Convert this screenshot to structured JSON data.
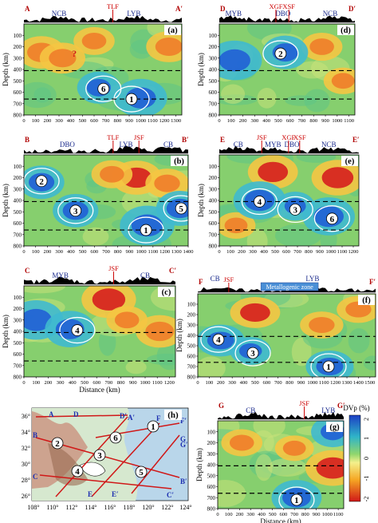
{
  "figure": {
    "depth_label": "Depth (km)",
    "distance_label": "Distance (km)",
    "colorbar_title": "DVp (%)",
    "colorbar_ticks": [
      "2",
      "1",
      "0",
      "-1",
      "-2"
    ],
    "colors": {
      "fast": "#1e5bd6",
      "slow": "#d61e1e",
      "neutral": "#7fd16a",
      "terrain": "#000000",
      "fault": "#cc0000",
      "contour": "#ffffff"
    }
  },
  "chart_data": [
    {
      "id": "a",
      "type": "heatmap",
      "panel_label": "(a)",
      "profile_start": "A",
      "profile_end": "A′",
      "xlim": [
        0,
        1350
      ],
      "ylim": [
        0,
        800
      ],
      "y_reversed": true,
      "xticks": [
        "0",
        "100",
        "200",
        "300",
        "400",
        "500",
        "600",
        "700",
        "800",
        "900",
        "1000",
        "1100",
        "1200",
        "1300"
      ],
      "yticks": [
        "100",
        "200",
        "300",
        "400",
        "500",
        "600",
        "700",
        "800"
      ],
      "discontinuities_km": [
        410,
        660
      ],
      "blocks": [
        {
          "name": "NCB",
          "x": 300
        },
        {
          "name": "LYB",
          "x": 940
        }
      ],
      "faults": [
        {
          "name": "TLF",
          "x": 760
        }
      ],
      "anomalies": [
        {
          "label": "?",
          "x": 430,
          "depth": 260
        },
        {
          "label": "6",
          "x": 680,
          "depth": 570
        },
        {
          "label": "1",
          "x": 920,
          "depth": 660
        }
      ],
      "fast_bodies": [
        {
          "x": 1000,
          "depth": 650,
          "dvp": 1.2
        },
        {
          "x": 640,
          "depth": 560,
          "dvp": 0.8
        }
      ],
      "slow_bodies": [
        {
          "x": 150,
          "depth": 250,
          "dvp": -1.0
        },
        {
          "x": 330,
          "depth": 300,
          "dvp": -0.9
        },
        {
          "x": 1240,
          "depth": 200,
          "dvp": -0.9
        },
        {
          "x": 600,
          "depth": 150,
          "dvp": -0.7
        }
      ]
    },
    {
      "id": "d",
      "type": "heatmap",
      "panel_label": "(d)",
      "profile_start": "D",
      "profile_end": "D′",
      "xlim": [
        0,
        1150
      ],
      "ylim": [
        0,
        800
      ],
      "y_reversed": true,
      "xticks": [
        "0",
        "100",
        "200",
        "300",
        "400",
        "500",
        "600",
        "700",
        "800",
        "900",
        "1000",
        "1100"
      ],
      "yticks": [
        "100",
        "200",
        "300",
        "400",
        "500",
        "600",
        "700",
        "800"
      ],
      "discontinuities_km": [
        410,
        660
      ],
      "blocks": [
        {
          "name": "MYB",
          "x": 120
        },
        {
          "name": "DBO",
          "x": 540
        },
        {
          "name": "NCB",
          "x": 940
        }
      ],
      "faults": [
        {
          "name": "XGF",
          "x": 480
        },
        {
          "name": "XSF",
          "x": 590
        }
      ],
      "anomalies": [
        {
          "label": "2",
          "x": 520,
          "depth": 260
        }
      ],
      "fast_bodies": [
        {
          "x": 130,
          "depth": 320,
          "dvp": 1.3
        },
        {
          "x": 560,
          "depth": 250,
          "dvp": 0.9
        }
      ],
      "slow_bodies": [
        {
          "x": 870,
          "depth": 200,
          "dvp": -0.7
        },
        {
          "x": 1050,
          "depth": 500,
          "dvp": -0.6
        }
      ]
    },
    {
      "id": "b",
      "type": "heatmap",
      "panel_label": "(b)",
      "profile_start": "B",
      "profile_end": "B′",
      "xlim": [
        0,
        1400
      ],
      "ylim": [
        0,
        800
      ],
      "y_reversed": true,
      "xticks": [
        "0",
        "100",
        "200",
        "300",
        "400",
        "500",
        "600",
        "700",
        "800",
        "900",
        "1000",
        "1100",
        "1200",
        "1300",
        "1400"
      ],
      "yticks": [
        "100",
        "200",
        "300",
        "400",
        "500",
        "600",
        "700",
        "800"
      ],
      "discontinuities_km": [
        410,
        660
      ],
      "blocks": [
        {
          "name": "DBO",
          "x": 370
        },
        {
          "name": "LYB",
          "x": 870
        },
        {
          "name": "CB",
          "x": 1230
        }
      ],
      "faults": [
        {
          "name": "TLF",
          "x": 760
        },
        {
          "name": "JSF",
          "x": 980
        }
      ],
      "anomalies": [
        {
          "label": "2",
          "x": 150,
          "depth": 230
        },
        {
          "label": "3",
          "x": 440,
          "depth": 490
        },
        {
          "label": "1",
          "x": 1040,
          "depth": 660
        },
        {
          "label": "5",
          "x": 1340,
          "depth": 470
        }
      ],
      "fast_bodies": [
        {
          "x": 150,
          "depth": 240,
          "dvp": 0.9
        },
        {
          "x": 440,
          "depth": 490,
          "dvp": 0.9
        },
        {
          "x": 1050,
          "depth": 620,
          "dvp": 1.3
        },
        {
          "x": 1330,
          "depth": 470,
          "dvp": 1.0
        }
      ],
      "slow_bodies": [
        {
          "x": 960,
          "depth": 200,
          "dvp": -1.1
        },
        {
          "x": 1220,
          "depth": 250,
          "dvp": -0.8
        },
        {
          "x": 750,
          "depth": 170,
          "dvp": -0.7
        }
      ]
    },
    {
      "id": "e",
      "type": "heatmap",
      "panel_label": "(e)",
      "profile_start": "E",
      "profile_end": "E′",
      "xlim": [
        0,
        1250
      ],
      "ylim": [
        0,
        800
      ],
      "y_reversed": true,
      "xticks": [
        "0",
        "100",
        "200",
        "300",
        "400",
        "500",
        "600",
        "700",
        "800",
        "900",
        "1000",
        "1100",
        "1200"
      ],
      "yticks": [
        "100",
        "200",
        "300",
        "400",
        "500",
        "600",
        "700",
        "800"
      ],
      "discontinuities_km": [
        410,
        660
      ],
      "blocks": [
        {
          "name": "CB",
          "x": 170
        },
        {
          "name": "MYB",
          "x": 480
        },
        {
          "name": "DBO",
          "x": 650
        },
        {
          "name": "NCB",
          "x": 980
        }
      ],
      "faults": [
        {
          "name": "JSF",
          "x": 380
        },
        {
          "name": "XGF",
          "x": 620
        },
        {
          "name": "XSF",
          "x": 720
        }
      ],
      "anomalies": [
        {
          "label": "4",
          "x": 360,
          "depth": 410
        },
        {
          "label": "3",
          "x": 680,
          "depth": 480
        },
        {
          "label": "6",
          "x": 1010,
          "depth": 560
        }
      ],
      "fast_bodies": [
        {
          "x": 360,
          "depth": 400,
          "dvp": 1.2
        },
        {
          "x": 980,
          "depth": 540,
          "dvp": 1.2
        },
        {
          "x": 680,
          "depth": 450,
          "dvp": 0.6
        }
      ],
      "slow_bodies": [
        {
          "x": 480,
          "depth": 150,
          "dvp": -1.1
        },
        {
          "x": 1060,
          "depth": 200,
          "dvp": -1.2
        },
        {
          "x": 150,
          "depth": 620,
          "dvp": -0.6
        }
      ]
    },
    {
      "id": "c",
      "type": "heatmap",
      "panel_label": "(c)",
      "profile_start": "C",
      "profile_end": "C′",
      "xlim": [
        0,
        1250
      ],
      "ylim": [
        0,
        800
      ],
      "y_reversed": true,
      "xticks": [
        "0",
        "100",
        "200",
        "300",
        "400",
        "500",
        "600",
        "700",
        "800",
        "900",
        "1000",
        "1100",
        "1200"
      ],
      "yticks": [
        "100",
        "200",
        "300",
        "400",
        "500",
        "600",
        "700",
        "800"
      ],
      "discontinuities_km": [
        410,
        660
      ],
      "blocks": [
        {
          "name": "MYB",
          "x": 300
        },
        {
          "name": "CB",
          "x": 1000
        }
      ],
      "faults": [
        {
          "name": "JSF",
          "x": 740
        }
      ],
      "anomalies": [
        {
          "label": "4",
          "x": 440,
          "depth": 390
        }
      ],
      "fast_bodies": [
        {
          "x": 100,
          "depth": 300,
          "dvp": 1.3
        },
        {
          "x": 380,
          "depth": 380,
          "dvp": 1.1
        }
      ],
      "slow_bodies": [
        {
          "x": 700,
          "depth": 120,
          "dvp": -1.3
        },
        {
          "x": 1120,
          "depth": 400,
          "dvp": -1.0
        },
        {
          "x": 850,
          "depth": 300,
          "dvp": -0.7
        }
      ]
    },
    {
      "id": "f",
      "type": "heatmap",
      "panel_label": "(f)",
      "profile_start": "F",
      "profile_end": "F′",
      "xlim": [
        0,
        1550
      ],
      "ylim": [
        0,
        800
      ],
      "y_reversed": true,
      "xticks": [
        "0",
        "100",
        "200",
        "300",
        "400",
        "500",
        "600",
        "700",
        "800",
        "900",
        "1000",
        "1100",
        "1200",
        "1300",
        "1400",
        "1500"
      ],
      "yticks": [
        "100",
        "200",
        "300",
        "400",
        "500",
        "600",
        "700",
        "800"
      ],
      "discontinuities_km": [
        410,
        660
      ],
      "blocks": [
        {
          "name": "CB",
          "x": 150
        },
        {
          "name": "LYB",
          "x": 1000
        }
      ],
      "faults": [
        {
          "name": "JSF",
          "x": 270
        }
      ],
      "zone_label": "Metallogenic zone",
      "anomalies": [
        {
          "label": "4",
          "x": 180,
          "depth": 440
        },
        {
          "label": "3",
          "x": 480,
          "depth": 570
        },
        {
          "label": "1",
          "x": 1140,
          "depth": 700
        }
      ],
      "fast_bodies": [
        {
          "x": 200,
          "depth": 450,
          "dvp": 1.0
        },
        {
          "x": 460,
          "depth": 550,
          "dvp": 0.7
        },
        {
          "x": 1150,
          "depth": 700,
          "dvp": 1.0
        }
      ],
      "slow_bodies": [
        {
          "x": 500,
          "depth": 180,
          "dvp": -1.1
        },
        {
          "x": 1080,
          "depth": 300,
          "dvp": -0.8
        },
        {
          "x": 1400,
          "depth": 150,
          "dvp": -0.8
        }
      ]
    },
    {
      "id": "g",
      "type": "heatmap",
      "panel_label": "(g)",
      "profile_start": "G",
      "profile_end": "G′",
      "xlim": [
        0,
        1150
      ],
      "ylim": [
        0,
        800
      ],
      "y_reversed": true,
      "xticks": [
        "0",
        "100",
        "200",
        "300",
        "400",
        "500",
        "600",
        "700",
        "800",
        "900",
        "1000",
        "1100"
      ],
      "yticks": [
        "100",
        "200",
        "300",
        "400",
        "500",
        "600",
        "700",
        "800"
      ],
      "discontinuities_km": [
        410,
        660
      ],
      "blocks": [
        {
          "name": "CB",
          "x": 300
        },
        {
          "name": "LYB",
          "x": 1010
        }
      ],
      "faults": [
        {
          "name": "JSF",
          "x": 790
        }
      ],
      "anomalies": [
        {
          "label": "1",
          "x": 720,
          "depth": 720
        }
      ],
      "fast_bodies": [
        {
          "x": 720,
          "depth": 700,
          "dvp": 1.1
        },
        {
          "x": 1050,
          "depth": 100,
          "dvp": 0.8
        }
      ],
      "slow_bodies": [
        {
          "x": 1050,
          "depth": 430,
          "dvp": -1.3
        },
        {
          "x": 220,
          "depth": 200,
          "dvp": -0.7
        },
        {
          "x": 700,
          "depth": 250,
          "dvp": -0.6
        }
      ]
    }
  ],
  "map_panel": {
    "panel_label": "(h)",
    "lon_ticks": [
      "108°",
      "110°",
      "112°",
      "114°",
      "116°",
      "118°",
      "120°",
      "122°",
      "124°"
    ],
    "lat_ticks": [
      "36°",
      "34°",
      "32°",
      "30°",
      "28°",
      "26°"
    ],
    "profile_labels": [
      "A",
      "A′",
      "B",
      "B′",
      "C",
      "C′",
      "D",
      "D′",
      "E",
      "E′",
      "F",
      "F′",
      "G",
      "G′"
    ],
    "anomaly_labels": [
      "1",
      "2",
      "3",
      "4",
      "5",
      "6"
    ]
  }
}
